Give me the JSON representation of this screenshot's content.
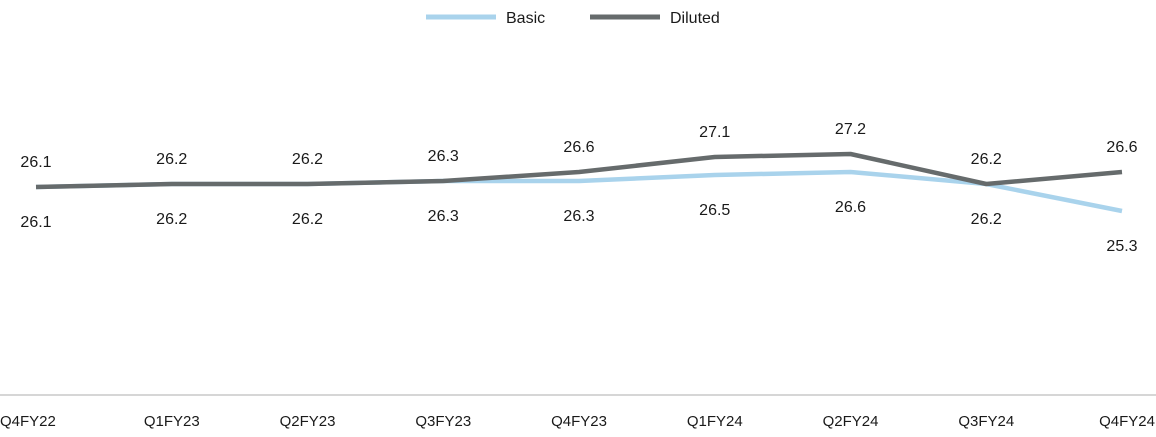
{
  "chart_data": {
    "type": "line",
    "categories": [
      "Q4FY22",
      "Q1FY23",
      "Q2FY23",
      "Q3FY23",
      "Q4FY23",
      "Q1FY24",
      "Q2FY24",
      "Q3FY24",
      "Q4FY24"
    ],
    "series": [
      {
        "name": "Basic",
        "color": "#a9d3ec",
        "values": [
          26.1,
          26.2,
          26.2,
          26.3,
          26.3,
          26.5,
          26.6,
          26.2,
          25.3
        ]
      },
      {
        "name": "Diluted",
        "color": "#666b6c",
        "values": [
          26.1,
          26.2,
          26.2,
          26.3,
          26.6,
          27.1,
          27.2,
          26.2,
          26.6
        ]
      }
    ],
    "legend": "top-center",
    "grid": false,
    "data_labels": true
  }
}
